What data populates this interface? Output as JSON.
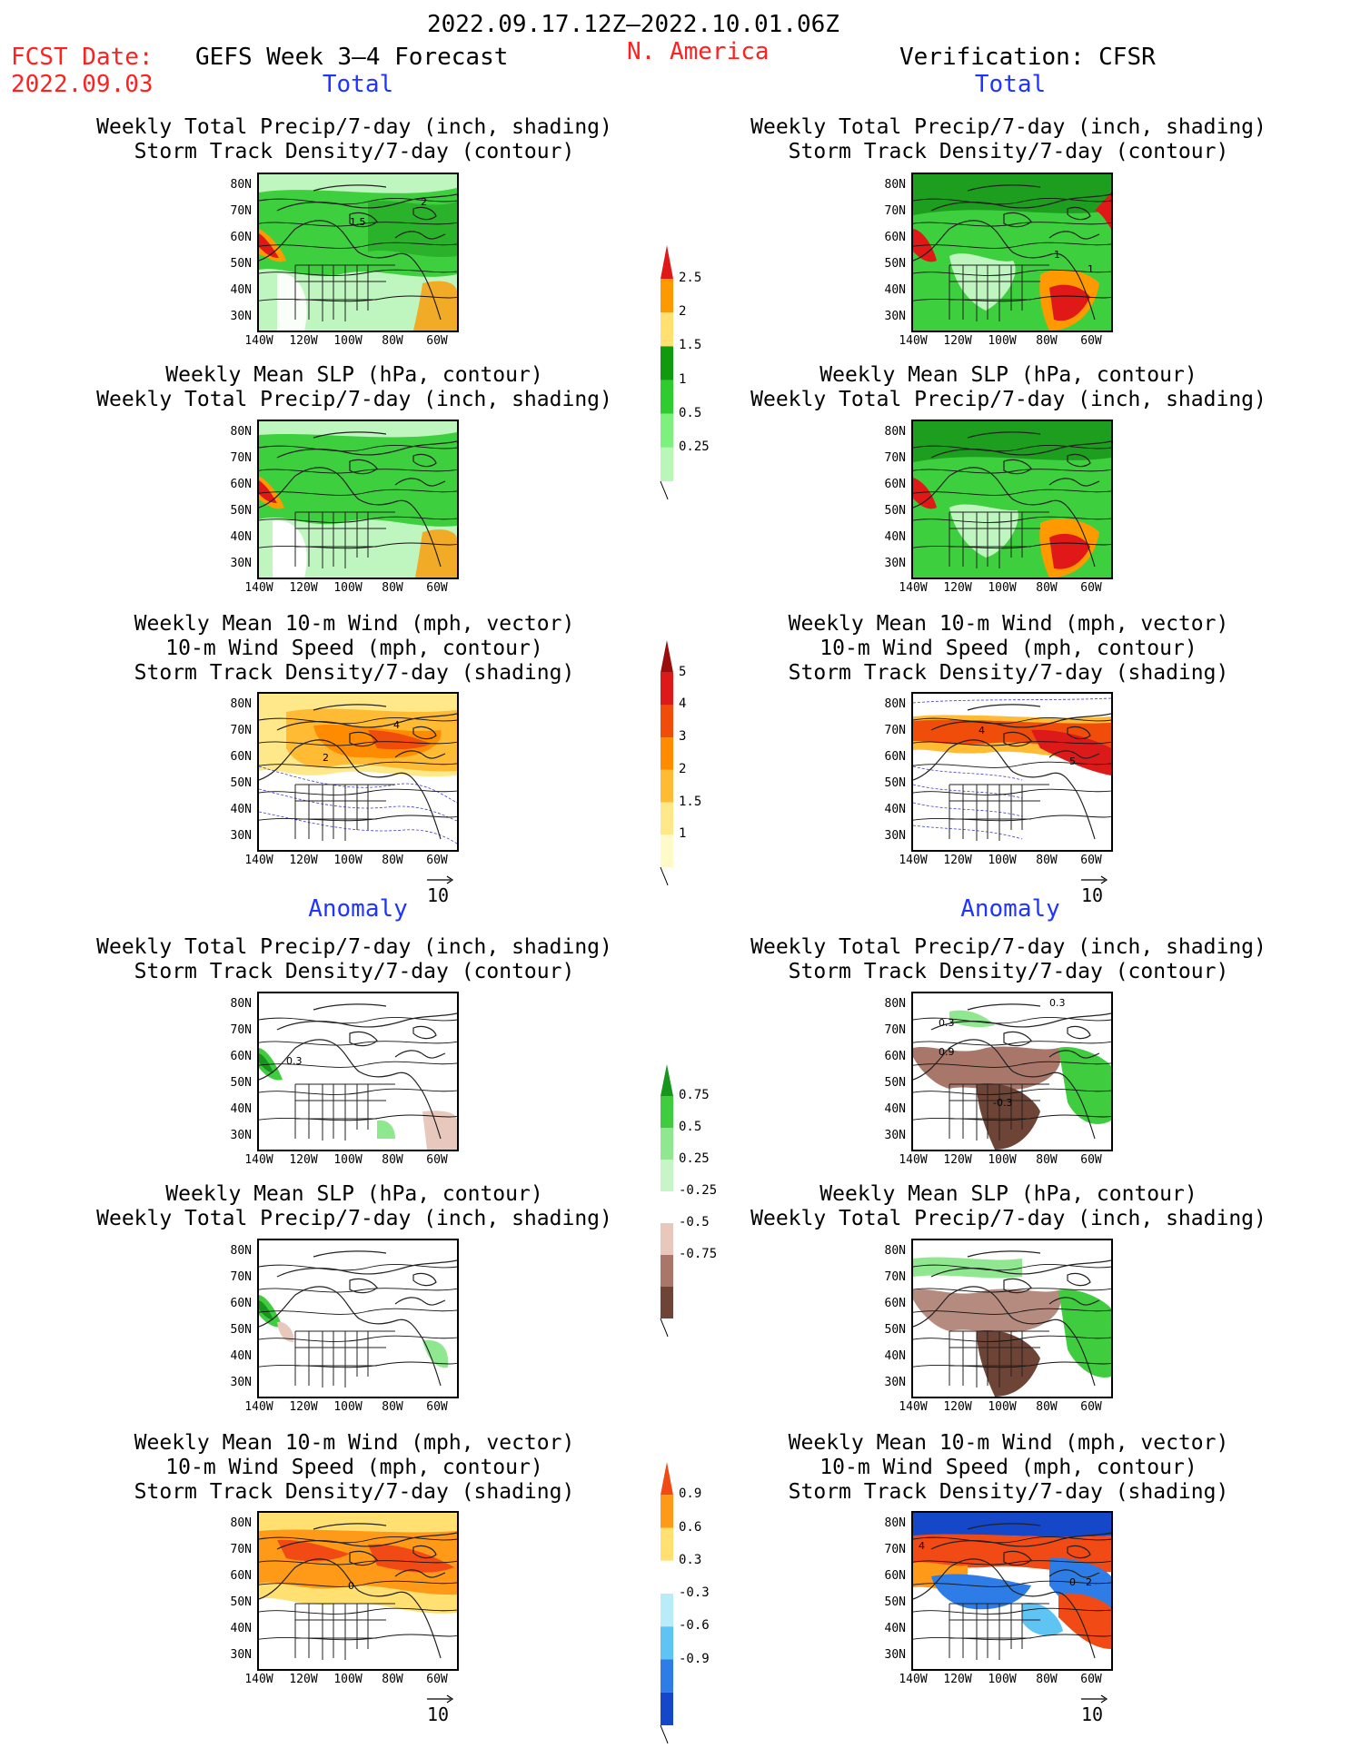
{
  "header": {
    "date_range": "2022.09.17.12Z–2022.10.01.06Z",
    "region": "N. America",
    "fcst_label": "FCST Date:",
    "fcst_date": "2022.09.03",
    "forecast_title": "GEFS Week 3–4 Forecast",
    "verification": "Verification: CFSR"
  },
  "sections": {
    "total": "Total",
    "anomaly": "Anomaly"
  },
  "panel_titles": {
    "precip_track": "Weekly Total Precip/7-day (inch, shading)\nStorm Track Density/7-day (contour)",
    "slp_precip": "Weekly Mean SLP (hPa, contour)\nWeekly Total Precip/7-day (inch, shading)",
    "wind_track": "Weekly Mean 10-m Wind (mph, vector)\n10-m Wind Speed (mph, contour)\nStorm Track Density/7-day (shading)"
  },
  "axes": {
    "lat": [
      "80N",
      "70N",
      "60N",
      "50N",
      "40N",
      "30N"
    ],
    "lon": [
      "140W",
      "120W",
      "100W",
      "80W",
      "60W"
    ]
  },
  "vector_ref": "10",
  "colorbars": {
    "precip_total": {
      "labels": [
        "2.5",
        "2",
        "1.5",
        "1",
        "0.5",
        "0.25"
      ],
      "colors": [
        "#e01818",
        "#ff9900",
        "#ffe070",
        "#0f9a0f",
        "#2ecc2e",
        "#7df07d",
        "#b8f7b8"
      ]
    },
    "track_total": {
      "labels": [
        "5",
        "4",
        "3",
        "2",
        "1.5",
        "1"
      ],
      "colors": [
        "#9b0c0c",
        "#dd1a1a",
        "#f04c0a",
        "#ff8c00",
        "#ffbb33",
        "#ffe88a",
        "#fffbc8"
      ]
    },
    "precip_anom": {
      "labels": [
        "0.75",
        "0.5",
        "0.25",
        "-0.25",
        "-0.5",
        "-0.75"
      ],
      "colors": [
        "#16961b",
        "#3fcc3f",
        "#8fe88f",
        "#c8f5c8",
        "#ffffff",
        "#e8c8bd",
        "#a8776a",
        "#6e4437"
      ]
    },
    "track_anom": {
      "labels": [
        "0.9",
        "0.6",
        "0.3",
        "-0.3",
        "-0.6",
        "-0.9"
      ],
      "colors": [
        "#f24a14",
        "#ff9a18",
        "#ffe070",
        "#ffffff",
        "#b8ecf8",
        "#5ec4f4",
        "#2e7de6",
        "#1448c8"
      ]
    }
  },
  "panel_labels": {
    "l_track_a": "1.5",
    "l_track_b": "2",
    "r_track_a": "1",
    "r_track_b": "1",
    "l_wind_a": "4",
    "l_wind_b": "2",
    "r_wind_a": "4",
    "r_wind_b": "5",
    "l_anom_a": "0.3",
    "r_anom_a": "0.3",
    "r_anom_b": "0.9",
    "r_anom_c": "-0.3",
    "r_anom_d": "0.3",
    "l_wanom_a": "0",
    "r_wanom_a": "4",
    "r_wanom_b": "0",
    "r_wanom_c": "2"
  }
}
